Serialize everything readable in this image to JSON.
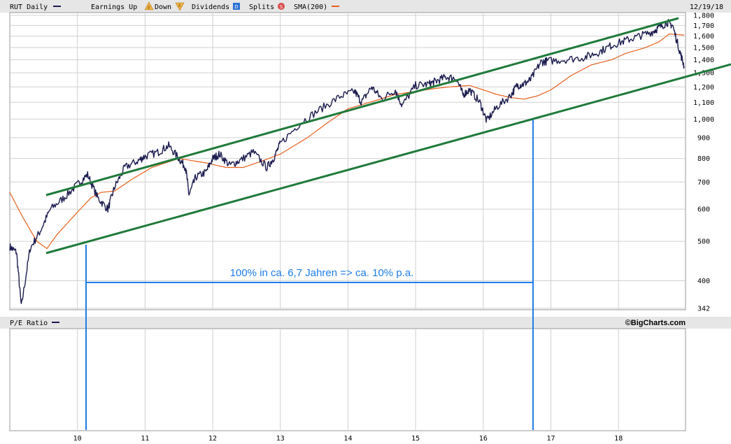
{
  "header": {
    "symbol_label": "RUT Daily",
    "earnings_up_label": "Earnings Up",
    "earnings_down_label": "Down",
    "dividends_label": "Dividends",
    "splits_label": "Splits",
    "sma_label": "SMA(200)",
    "date_label": "12/19/18",
    "earnings_up_icon_glyph": "E",
    "earnings_down_icon_glyph": "E",
    "dividends_icon_glyph": "D",
    "splits_icon_glyph": "S"
  },
  "pe_panel": {
    "label": "P/E Ratio"
  },
  "watermark": "©BigCharts.com",
  "annotation": {
    "text": "100% in ca. 6,7 Jahren => ca. 10% p.a."
  },
  "colors": {
    "price": "#1b1b4f",
    "sma": "#e8601c",
    "channel": "#1f7a3a",
    "annotation": "#1e7ee6",
    "grid": "#d0d0d0",
    "header_bg": "#e6e6e6"
  },
  "chart_data": {
    "type": "line",
    "title": "RUT Daily",
    "y_scale": "log",
    "ylim": [
      342,
      1800
    ],
    "y_ticks": [
      1800,
      1700,
      1600,
      1500,
      1400,
      1300,
      1200,
      1100,
      1000,
      900,
      800,
      700,
      600,
      500,
      400,
      342
    ],
    "y_tick_labels": [
      "1,800",
      "1,700",
      "1,600",
      "1,500",
      "1,400",
      "1,300",
      "1,200",
      "1,100",
      "1,000",
      "900",
      "800",
      "700",
      "600",
      "500",
      "400",
      "342"
    ],
    "xlim": [
      2009.0,
      2018.97
    ],
    "x_tick_labels": [
      "10",
      "11",
      "12",
      "13",
      "14",
      "15",
      "16",
      "17",
      "18"
    ],
    "x_tick_values": [
      2010,
      2011,
      2012,
      2013,
      2014,
      2015,
      2016,
      2017,
      2018
    ],
    "series": [
      {
        "name": "RUT Daily",
        "x": [
          2009.0,
          2009.1,
          2009.17,
          2009.3,
          2009.45,
          2009.6,
          2009.8,
          2010.0,
          2010.15,
          2010.3,
          2010.45,
          2010.55,
          2010.7,
          2010.9,
          2011.0,
          2011.2,
          2011.35,
          2011.5,
          2011.6,
          2011.65,
          2011.75,
          2011.9,
          2012.0,
          2012.1,
          2012.25,
          2012.4,
          2012.6,
          2012.8,
          2012.9,
          2013.0,
          2013.3,
          2013.6,
          2013.9,
          2014.1,
          2014.2,
          2014.35,
          2014.5,
          2014.7,
          2014.8,
          2015.0,
          2015.2,
          2015.3,
          2015.45,
          2015.6,
          2015.7,
          2015.8,
          2015.95,
          2016.05,
          2016.2,
          2016.4,
          2016.5,
          2016.6,
          2016.7,
          2016.85,
          2016.95,
          2017.2,
          2017.5,
          2017.7,
          2017.9,
          2018.1,
          2018.3,
          2018.5,
          2018.6,
          2018.72,
          2018.8,
          2018.9,
          2018.97
        ],
        "values": [
          485,
          470,
          345,
          480,
          530,
          600,
          640,
          690,
          730,
          640,
          600,
          680,
          760,
          790,
          810,
          830,
          860,
          800,
          760,
          650,
          720,
          740,
          800,
          820,
          770,
          790,
          830,
          760,
          800,
          870,
          980,
          1060,
          1140,
          1170,
          1100,
          1200,
          1120,
          1180,
          1080,
          1210,
          1220,
          1240,
          1270,
          1260,
          1150,
          1180,
          1100,
          990,
          1070,
          1140,
          1210,
          1220,
          1250,
          1380,
          1390,
          1400,
          1420,
          1460,
          1520,
          1560,
          1600,
          1640,
          1680,
          1730,
          1700,
          1480,
          1350
        ]
      },
      {
        "name": "SMA(200)",
        "x": [
          2009.0,
          2009.2,
          2009.4,
          2009.55,
          2009.7,
          2010.0,
          2010.2,
          2010.35,
          2010.55,
          2010.8,
          2011.1,
          2011.5,
          2011.9,
          2012.2,
          2012.45,
          2012.7,
          2013.0,
          2013.4,
          2013.7,
          2014.0,
          2014.4,
          2014.7,
          2015.0,
          2015.3,
          2015.5,
          2015.8,
          2016.0,
          2016.2,
          2016.4,
          2016.6,
          2016.8,
          2017.0,
          2017.3,
          2017.6,
          2017.9,
          2018.1,
          2018.4,
          2018.6,
          2018.75,
          2018.97
        ],
        "values": [
          660,
          570,
          500,
          480,
          520,
          590,
          640,
          660,
          665,
          710,
          760,
          800,
          780,
          760,
          760,
          785,
          820,
          900,
          980,
          1060,
          1110,
          1150,
          1170,
          1190,
          1200,
          1210,
          1180,
          1150,
          1130,
          1120,
          1140,
          1180,
          1280,
          1360,
          1400,
          1450,
          1500,
          1550,
          1620,
          1610
        ]
      }
    ]
  }
}
